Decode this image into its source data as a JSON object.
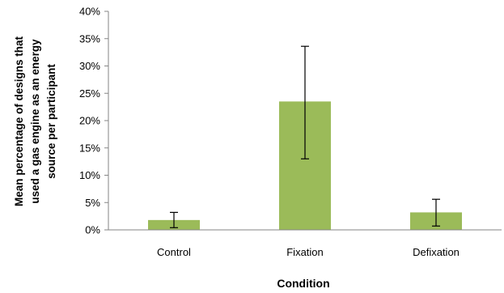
{
  "chart_data": {
    "type": "bar",
    "categories": [
      "Control",
      "Fixation",
      "Defixation"
    ],
    "values": [
      1.8,
      23.5,
      3.2
    ],
    "error_bars": {
      "low": [
        0.4,
        13.0,
        0.7
      ],
      "high": [
        3.2,
        33.6,
        5.6
      ]
    },
    "ylim": [
      0,
      40
    ],
    "yticks": [
      0,
      5,
      10,
      15,
      20,
      25,
      30,
      35,
      40
    ],
    "ytick_labels": [
      "0%",
      "5%",
      "10%",
      "15%",
      "20%",
      "25%",
      "30%",
      "35%",
      "40%"
    ],
    "xlabel": "Condition",
    "ylabel_lines": [
      "Mean percentage of designs that",
      "used a gas engine as an energy",
      "source per participant"
    ],
    "bar_color": "#9BBB59",
    "grid": false,
    "legend": "none"
  }
}
